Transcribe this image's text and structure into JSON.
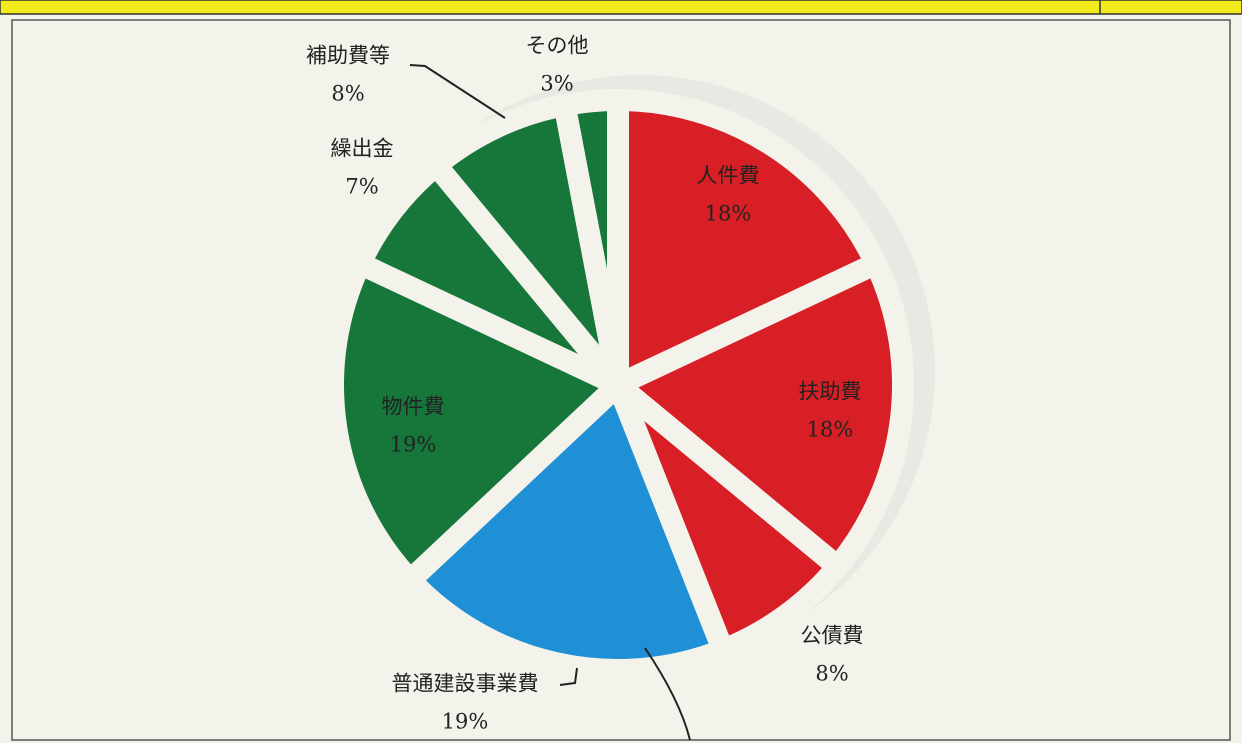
{
  "chart_data": {
    "type": "pie",
    "categories": [
      "人件費",
      "扶助費",
      "公債費",
      "普通建設事業費",
      "物件費",
      "繰出金",
      "補助費等",
      "その他"
    ],
    "values": [
      18,
      18,
      8,
      19,
      19,
      7,
      8,
      3
    ],
    "value_labels": [
      "18%",
      "18%",
      "8%",
      "19%",
      "19%",
      "7%",
      "8%",
      "3%"
    ],
    "colors": [
      "#d81f26",
      "#d81f26",
      "#d81f26",
      "#1f8fd6",
      "#17773a",
      "#17773a",
      "#17773a",
      "#17773a"
    ]
  }
}
